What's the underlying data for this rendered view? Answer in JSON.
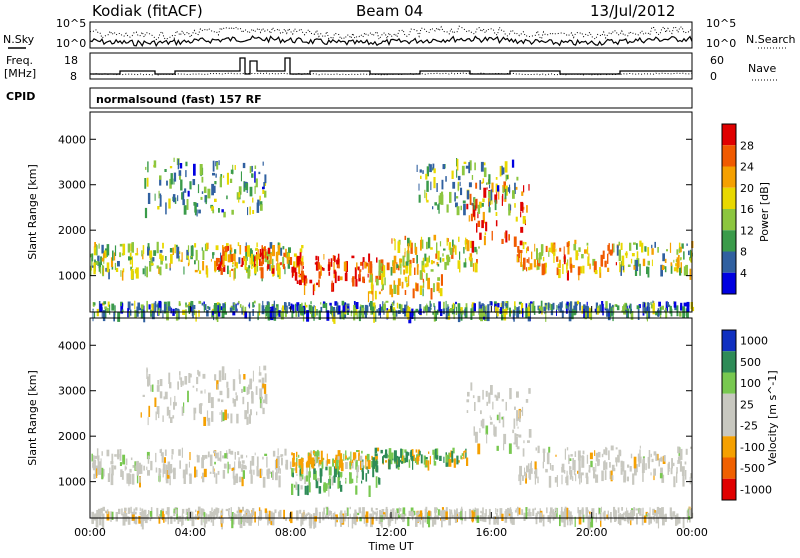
{
  "header": {
    "station": "Kodiak (fitACF)",
    "beam": "Beam 04",
    "date": "13/Jul/2012"
  },
  "aux_panels": {
    "nsky_label": "N.Sky",
    "nsky_ticks": [
      "10^5",
      "10^0"
    ],
    "nsearch_label": "N.Search",
    "nsearch_ticks": [
      "10^5",
      "10^0"
    ],
    "freq_label_1": "Freq.",
    "freq_label_2": "[MHz]",
    "freq_ticks": [
      "18",
      "8"
    ],
    "nave_label": "Nave",
    "nave_ticks": [
      "60",
      "0"
    ],
    "cpid_label": "CPID",
    "cpid_text": "normalsound (fast) 157 RF"
  },
  "chart_data": [
    {
      "type": "heatmap",
      "panel": "power",
      "ylabel": "Slant Range [km]",
      "yticks": [
        "4000",
        "3000",
        "2000",
        "1000"
      ],
      "ylim": [
        200,
        4600
      ],
      "xlim": [
        0,
        24
      ],
      "colorbar_label": "Power [dB]",
      "colorbar_ticks": [
        "28",
        "24",
        "20",
        "16",
        "12",
        "8",
        "4"
      ],
      "colorbar_colors": [
        "#e00000",
        "#f05a00",
        "#f5a000",
        "#e8d800",
        "#8cc63f",
        "#3a9b4a",
        "#3060a0",
        "#0000e0"
      ],
      "bands": [
        {
          "start": 0.0,
          "end": 8.0,
          "r_low": 1100,
          "r_high": 1750,
          "level": 0.45
        },
        {
          "start": 5.0,
          "end": 8.5,
          "r_low": 1150,
          "r_high": 1700,
          "level": 0.75
        },
        {
          "start": 8.0,
          "end": 11.5,
          "r_low": 800,
          "r_high": 1500,
          "level": 0.9
        },
        {
          "start": 11.0,
          "end": 14.0,
          "r_low": 650,
          "r_high": 1400,
          "level": 0.6
        },
        {
          "start": 12.0,
          "end": 15.5,
          "r_low": 1250,
          "r_high": 1900,
          "level": 0.55
        },
        {
          "start": 15.0,
          "end": 17.5,
          "r_low": 1700,
          "r_high": 3200,
          "level": 0.8
        },
        {
          "start": 17.0,
          "end": 21.0,
          "r_low": 1100,
          "r_high": 1800,
          "level": 0.65
        },
        {
          "start": 21.0,
          "end": 24.0,
          "r_low": 1150,
          "r_high": 1800,
          "level": 0.45
        },
        {
          "start": 2.0,
          "end": 7.0,
          "r_low": 2400,
          "r_high": 3600,
          "level": 0.35
        },
        {
          "start": 13.0,
          "end": 17.0,
          "r_low": 2500,
          "r_high": 3600,
          "level": 0.35
        },
        {
          "start": 0.0,
          "end": 24.0,
          "r_low": 200,
          "r_high": 450,
          "level": 0.3
        }
      ]
    },
    {
      "type": "heatmap",
      "panel": "velocity",
      "ylabel": "Slant Range [km]",
      "yticks": [
        "4000",
        "3000",
        "2000",
        "1000"
      ],
      "ylim": [
        200,
        4600
      ],
      "xlim": [
        0,
        24
      ],
      "xlabel": "Time UT",
      "xticks": [
        "00:00",
        "04:00",
        "08:00",
        "12:00",
        "16:00",
        "20:00",
        "00:00"
      ],
      "colorbar_label": "Velocity [m s^-1]",
      "colorbar_ticks": [
        "1000",
        "500",
        "100",
        "25",
        "-25",
        "-100",
        "-500",
        "-1000"
      ],
      "colorbar_colors": [
        "#1030c0",
        "#2e8b57",
        "#78c850",
        "#c8c8c0",
        "#c8c8c0",
        "#f5a000",
        "#f06000",
        "#e00000"
      ],
      "bands": [
        {
          "start": 0.0,
          "end": 8.0,
          "r_low": 1100,
          "r_high": 1750,
          "class": "gray"
        },
        {
          "start": 8.0,
          "end": 11.5,
          "r_low": 900,
          "r_high": 1500,
          "class": "green"
        },
        {
          "start": 8.0,
          "end": 11.0,
          "r_low": 1400,
          "r_high": 1700,
          "class": "orange"
        },
        {
          "start": 11.0,
          "end": 15.0,
          "r_low": 1450,
          "r_high": 1750,
          "class": "mixed"
        },
        {
          "start": 15.0,
          "end": 17.5,
          "r_low": 1700,
          "r_high": 3200,
          "class": "gray"
        },
        {
          "start": 17.0,
          "end": 24.0,
          "r_low": 1100,
          "r_high": 1800,
          "class": "gray"
        },
        {
          "start": 2.0,
          "end": 7.0,
          "r_low": 2400,
          "r_high": 3600,
          "class": "gray"
        },
        {
          "start": 0.0,
          "end": 24.0,
          "r_low": 200,
          "r_high": 450,
          "class": "gray"
        }
      ]
    }
  ]
}
